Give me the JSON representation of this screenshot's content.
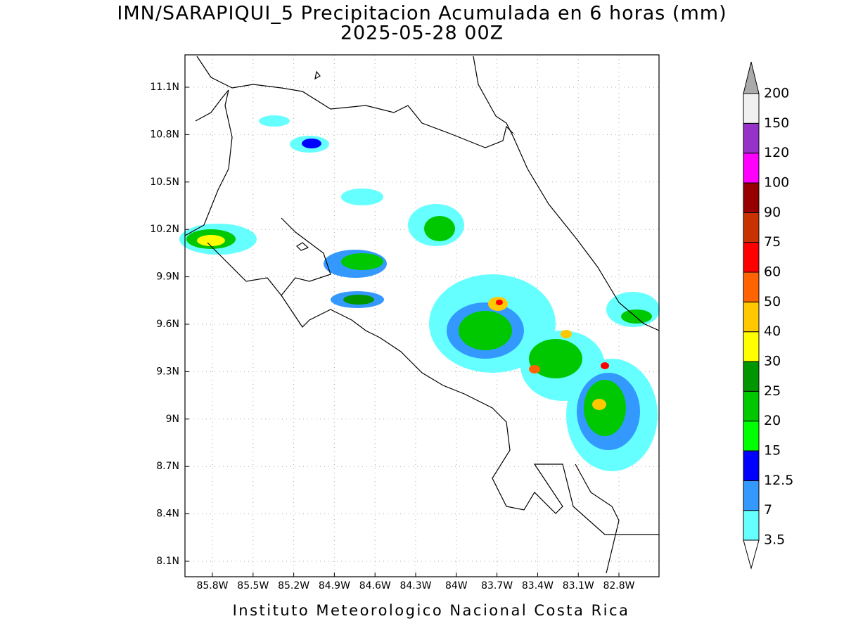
{
  "header": {
    "title": "IMN/SARAPIQUI_5 Precipitacion Acumulada en 6 horas (mm)",
    "subtitle": "2025-05-28 00Z"
  },
  "map": {
    "xticks": [
      "85.8W",
      "85.5W",
      "85.2W",
      "84.9W",
      "84.6W",
      "84.3W",
      "84W",
      "83.7W",
      "83.4W",
      "83.1W",
      "82.8W"
    ],
    "yticks": [
      "11.1N",
      "10.8N",
      "10.5N",
      "10.2N",
      "9.9N",
      "9.6N",
      "9.3N",
      "9N",
      "8.7N",
      "8.4N",
      "8.1N"
    ]
  },
  "legend": {
    "labels": [
      "3.5",
      "7",
      "12.5",
      "15",
      "20",
      "25",
      "30",
      "40",
      "50",
      "60",
      "75",
      "90",
      "100",
      "120",
      "150",
      "200"
    ],
    "colors": [
      "#66ffff",
      "#3399ff",
      "#0000ff",
      "#00ff00",
      "#00c800",
      "#009600",
      "#ffff00",
      "#ffc800",
      "#ff6400",
      "#ff0000",
      "#c83200",
      "#960000",
      "#ff00ff",
      "#9632c8",
      "#f0f0f0"
    ],
    "over_color": "#aaaaaa",
    "under_color": "#ffffff"
  },
  "footer": {
    "text": "Instituto Meteorologico Nacional Costa Rica"
  }
}
